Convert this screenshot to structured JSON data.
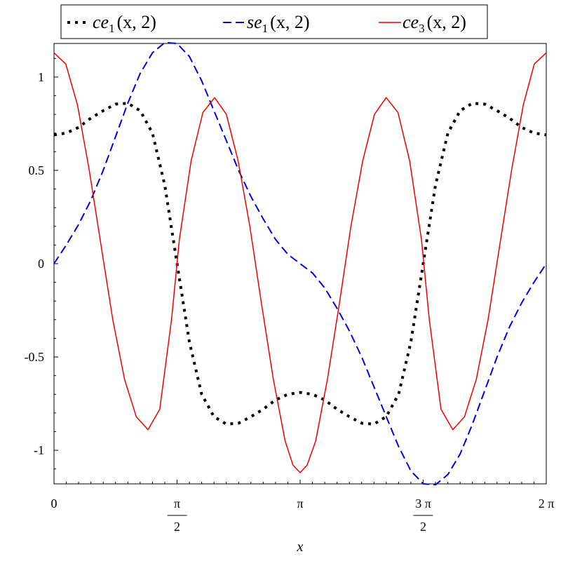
{
  "chart_data": {
    "type": "line",
    "xlabel": "x",
    "xlim": [
      0,
      6.283185307
    ],
    "ylim": [
      -1.18,
      1.18
    ],
    "x_ticks": [
      {
        "value": 0,
        "label": "0"
      },
      {
        "value": 1.5707963,
        "num": "π",
        "den": "2"
      },
      {
        "value": 3.1415927,
        "label": "π"
      },
      {
        "value": 4.712389,
        "num": "3 π",
        "den": "2"
      },
      {
        "value": 6.2831853,
        "label": "2 π"
      }
    ],
    "y_ticks": [
      {
        "value": 1,
        "label": "1"
      },
      {
        "value": 0.5,
        "label": "0.5"
      },
      {
        "value": 0,
        "label": "0"
      },
      {
        "value": -0.5,
        "label": "-0.5"
      },
      {
        "value": -1,
        "label": "-1"
      }
    ],
    "series": [
      {
        "name_main": "ce",
        "name_sub": "1",
        "name_args": "(x, 2)",
        "color": "#000000",
        "style": "dotted",
        "points": [
          [
            0,
            0.69
          ],
          [
            0.157,
            0.7
          ],
          [
            0.314,
            0.73
          ],
          [
            0.471,
            0.78
          ],
          [
            0.628,
            0.82
          ],
          [
            0.785,
            0.855
          ],
          [
            0.942,
            0.86
          ],
          [
            1.1,
            0.82
          ],
          [
            1.257,
            0.7
          ],
          [
            1.414,
            0.42
          ],
          [
            1.571,
            0.0
          ],
          [
            1.728,
            -0.42
          ],
          [
            1.885,
            -0.7
          ],
          [
            2.042,
            -0.82
          ],
          [
            2.199,
            -0.86
          ],
          [
            2.356,
            -0.855
          ],
          [
            2.513,
            -0.82
          ],
          [
            2.67,
            -0.78
          ],
          [
            2.827,
            -0.73
          ],
          [
            2.985,
            -0.7
          ],
          [
            3.142,
            -0.69
          ],
          [
            3.299,
            -0.7
          ],
          [
            3.456,
            -0.73
          ],
          [
            3.613,
            -0.78
          ],
          [
            3.77,
            -0.82
          ],
          [
            3.927,
            -0.855
          ],
          [
            4.084,
            -0.86
          ],
          [
            4.241,
            -0.82
          ],
          [
            4.398,
            -0.7
          ],
          [
            4.555,
            -0.42
          ],
          [
            4.712,
            0.0
          ],
          [
            4.869,
            0.42
          ],
          [
            5.027,
            0.7
          ],
          [
            5.184,
            0.82
          ],
          [
            5.341,
            0.86
          ],
          [
            5.498,
            0.855
          ],
          [
            5.655,
            0.82
          ],
          [
            5.812,
            0.78
          ],
          [
            5.969,
            0.73
          ],
          [
            6.126,
            0.7
          ],
          [
            6.283,
            0.69
          ]
        ]
      },
      {
        "name_main": "se",
        "name_sub": "1",
        "name_args": "(x, 2)",
        "color": "#0000dd",
        "style": "dashed",
        "points": [
          [
            0,
            0.0
          ],
          [
            0.157,
            0.1
          ],
          [
            0.314,
            0.21
          ],
          [
            0.471,
            0.34
          ],
          [
            0.628,
            0.5
          ],
          [
            0.785,
            0.68
          ],
          [
            0.942,
            0.86
          ],
          [
            1.1,
            1.02
          ],
          [
            1.257,
            1.13
          ],
          [
            1.414,
            1.185
          ],
          [
            1.571,
            1.18
          ],
          [
            1.728,
            1.11
          ],
          [
            1.885,
            0.98
          ],
          [
            2.042,
            0.82
          ],
          [
            2.199,
            0.66
          ],
          [
            2.356,
            0.5
          ],
          [
            2.513,
            0.36
          ],
          [
            2.67,
            0.24
          ],
          [
            2.827,
            0.13
          ],
          [
            2.985,
            0.05
          ],
          [
            3.142,
            0.0
          ],
          [
            3.299,
            -0.05
          ],
          [
            3.456,
            -0.13
          ],
          [
            3.613,
            -0.24
          ],
          [
            3.77,
            -0.36
          ],
          [
            3.927,
            -0.5
          ],
          [
            4.084,
            -0.66
          ],
          [
            4.241,
            -0.82
          ],
          [
            4.398,
            -0.98
          ],
          [
            4.555,
            -1.11
          ],
          [
            4.712,
            -1.18
          ],
          [
            4.869,
            -1.185
          ],
          [
            5.027,
            -1.13
          ],
          [
            5.184,
            -1.02
          ],
          [
            5.341,
            -0.86
          ],
          [
            5.498,
            -0.68
          ],
          [
            5.655,
            -0.5
          ],
          [
            5.812,
            -0.34
          ],
          [
            5.969,
            -0.21
          ],
          [
            6.126,
            -0.1
          ],
          [
            6.283,
            0.0
          ]
        ]
      },
      {
        "name_main": "ce",
        "name_sub": "3",
        "name_args": "(x, 2)",
        "color": "#ee0000",
        "style": "solid",
        "points": [
          [
            0,
            1.13
          ],
          [
            0.15,
            1.07
          ],
          [
            0.3,
            0.85
          ],
          [
            0.45,
            0.5
          ],
          [
            0.6,
            0.1
          ],
          [
            0.75,
            -0.3
          ],
          [
            0.9,
            -0.62
          ],
          [
            1.05,
            -0.82
          ],
          [
            1.2,
            -0.89
          ],
          [
            1.35,
            -0.78
          ],
          [
            1.5,
            -0.3
          ],
          [
            1.6,
            0.13
          ],
          [
            1.75,
            0.55
          ],
          [
            1.9,
            0.81
          ],
          [
            2.05,
            0.89
          ],
          [
            2.2,
            0.8
          ],
          [
            2.35,
            0.55
          ],
          [
            2.5,
            0.2
          ],
          [
            2.65,
            -0.22
          ],
          [
            2.8,
            -0.62
          ],
          [
            2.95,
            -0.95
          ],
          [
            3.05,
            -1.08
          ],
          [
            3.142,
            -1.12
          ],
          [
            3.23,
            -1.08
          ],
          [
            3.34,
            -0.95
          ],
          [
            3.49,
            -0.62
          ],
          [
            3.64,
            -0.22
          ],
          [
            3.79,
            0.2
          ],
          [
            3.94,
            0.55
          ],
          [
            4.09,
            0.8
          ],
          [
            4.24,
            0.89
          ],
          [
            4.39,
            0.81
          ],
          [
            4.54,
            0.55
          ],
          [
            4.69,
            0.13
          ],
          [
            4.79,
            -0.3
          ],
          [
            4.94,
            -0.78
          ],
          [
            5.09,
            -0.89
          ],
          [
            5.24,
            -0.82
          ],
          [
            5.39,
            -0.62
          ],
          [
            5.54,
            -0.3
          ],
          [
            5.69,
            0.1
          ],
          [
            5.84,
            0.5
          ],
          [
            5.99,
            0.85
          ],
          [
            6.13,
            1.07
          ],
          [
            6.283,
            1.13
          ]
        ]
      }
    ]
  }
}
